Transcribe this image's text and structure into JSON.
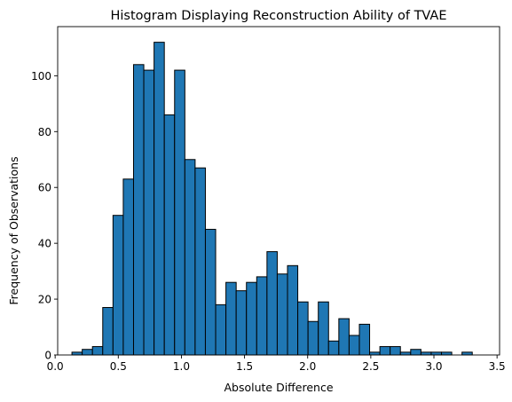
{
  "chart_data": {
    "type": "bar",
    "title": "Histogram Displaying Reconstruction Ability of TVAE",
    "xlabel": "Absolute Difference",
    "ylabel": "Frequency of Observations",
    "xlim": [
      0.02,
      3.52
    ],
    "ylim": [
      0,
      117.6
    ],
    "x_ticks": [
      0.0,
      0.5,
      1.0,
      1.5,
      2.0,
      2.5,
      3.0,
      3.5
    ],
    "x_tick_labels": [
      "0.0",
      "0.5",
      "1.0",
      "1.5",
      "2.0",
      "2.5",
      "3.0",
      "3.5"
    ],
    "y_ticks": [
      0,
      20,
      40,
      60,
      80,
      100
    ],
    "y_tick_labels": [
      "0",
      "20",
      "40",
      "60",
      "80",
      "100"
    ],
    "grid": false,
    "legend": "none",
    "bar_color": "#1f77b4",
    "edge_color": "#000000",
    "bin_start": 0.133,
    "bin_width": 0.0813,
    "counts": [
      1,
      2,
      3,
      17,
      50,
      63,
      104,
      102,
      112,
      86,
      102,
      70,
      67,
      45,
      18,
      26,
      23,
      26,
      28,
      37,
      29,
      32,
      19,
      12,
      19,
      5,
      13,
      7,
      11,
      1,
      3,
      3,
      1,
      2,
      1,
      1,
      1,
      0,
      1
    ]
  }
}
